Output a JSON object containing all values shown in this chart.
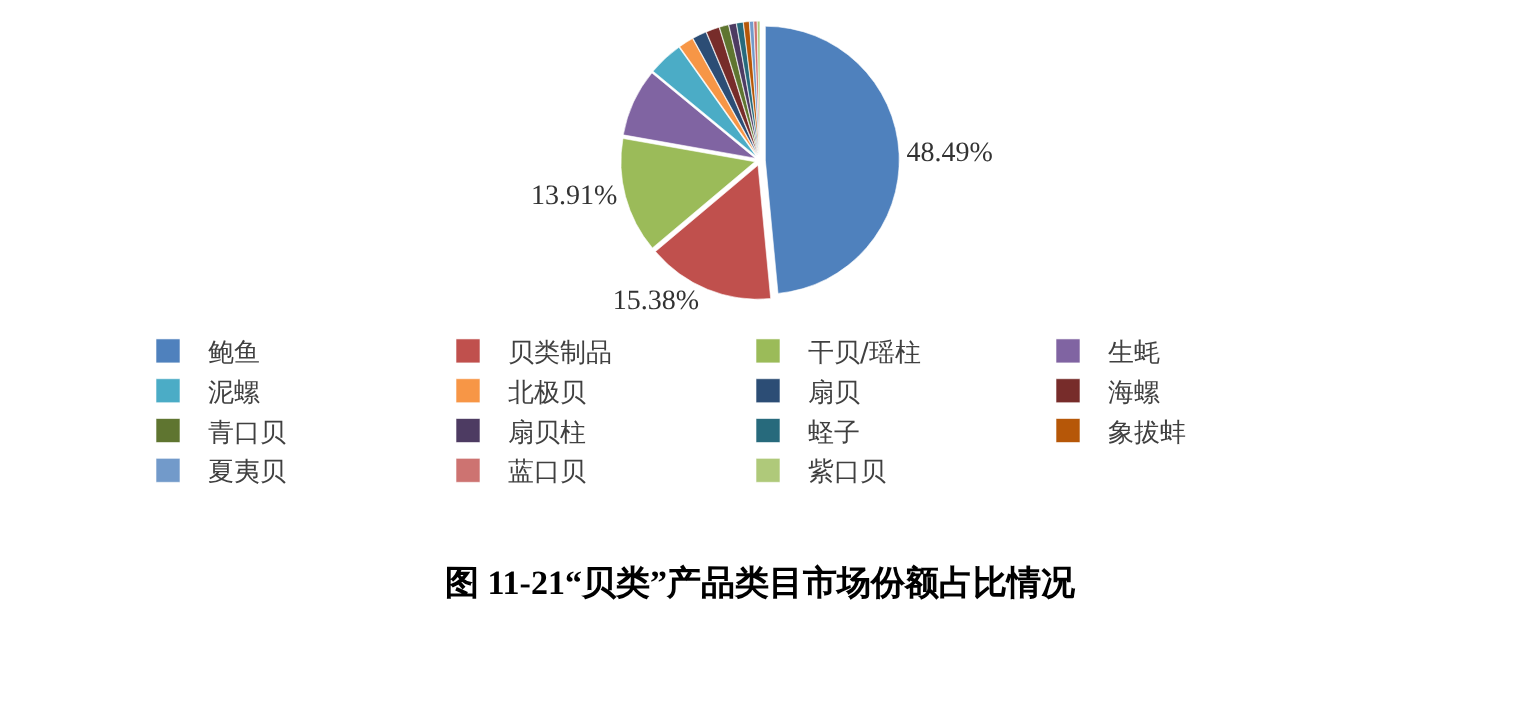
{
  "chart_data": {
    "type": "pie",
    "title": "图 11-21“贝类”产品类目市场份额占比情况",
    "categories": [
      "鲍鱼",
      "贝类制品",
      "干贝/瑶柱",
      "生蚝",
      "泥螺",
      "北极贝",
      "扇贝",
      "海螺",
      "青口贝",
      "扇贝柱",
      "蛏子",
      "象拔蚌",
      "夏夷贝",
      "蓝口贝",
      "紫口贝"
    ],
    "values": [
      48.49,
      15.38,
      13.91,
      8.2,
      4.2,
      1.8,
      1.7,
      1.6,
      1.1,
      0.9,
      0.8,
      0.7,
      0.5,
      0.4,
      0.32
    ],
    "value_labels": [
      "48.49%",
      "15.38%",
      "13.91%",
      null,
      null,
      null,
      null,
      null,
      null,
      null,
      null,
      null,
      null,
      null,
      null
    ],
    "colors": [
      "#4f81bd",
      "#c0504d",
      "#9bbb59",
      "#8064a2",
      "#4bacc6",
      "#f79646",
      "#2c4d75",
      "#772c2a",
      "#5f7530",
      "#4d3b62",
      "#276a7c",
      "#b65708",
      "#729aca",
      "#cd7371",
      "#afc97a"
    ],
    "legend": "bottom"
  }
}
